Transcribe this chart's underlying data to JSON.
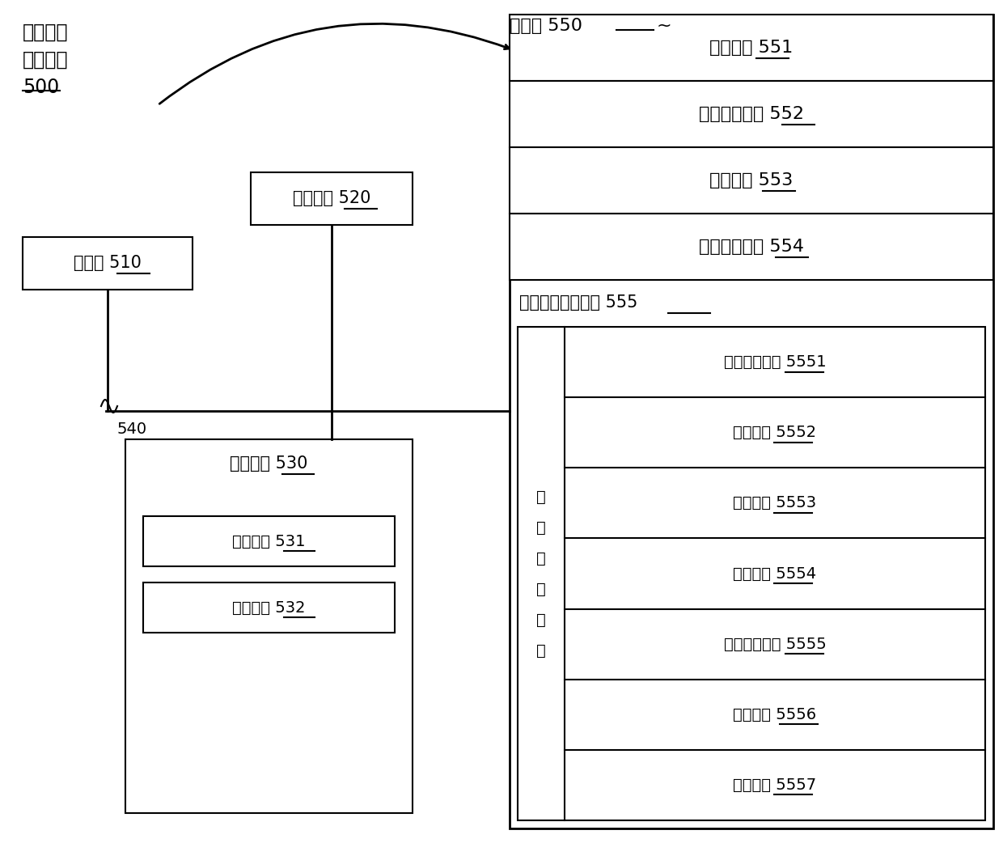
{
  "bg_color": "#ffffff",
  "label_500_l1": "血管图像",
  "label_500_l2": "处理设备",
  "label_500_l3": "500",
  "label_550": "存储器 550",
  "label_550_tilde": "~",
  "label_510": "处理器 510",
  "label_520": "网络接口 520",
  "label_530": "用户接口 530",
  "label_531": "输出装置 531",
  "label_532": "输入装置 532",
  "label_540": "540",
  "label_551": "操作系统 551",
  "label_552": "网络通信模块 552",
  "label_553": "显示模块 553",
  "label_554": "输入处理模块 554",
  "label_555": "血管图像处理装置 555",
  "label_5551": "特征提取模块 5551",
  "label_5552": "输出模块 5552",
  "label_5553": "激活模块 5553",
  "label_5554": "输入模块 5554",
  "label_5555": "扩展压缩模块 5555",
  "label_5556": "侧输出层 5556",
  "label_5557": "训练模块 5557",
  "label_neural_l1": "神",
  "label_neural_l2": "经",
  "label_neural_l3": "网",
  "label_neural_l4": "络",
  "label_neural_l5": "模",
  "label_neural_l6": "型"
}
